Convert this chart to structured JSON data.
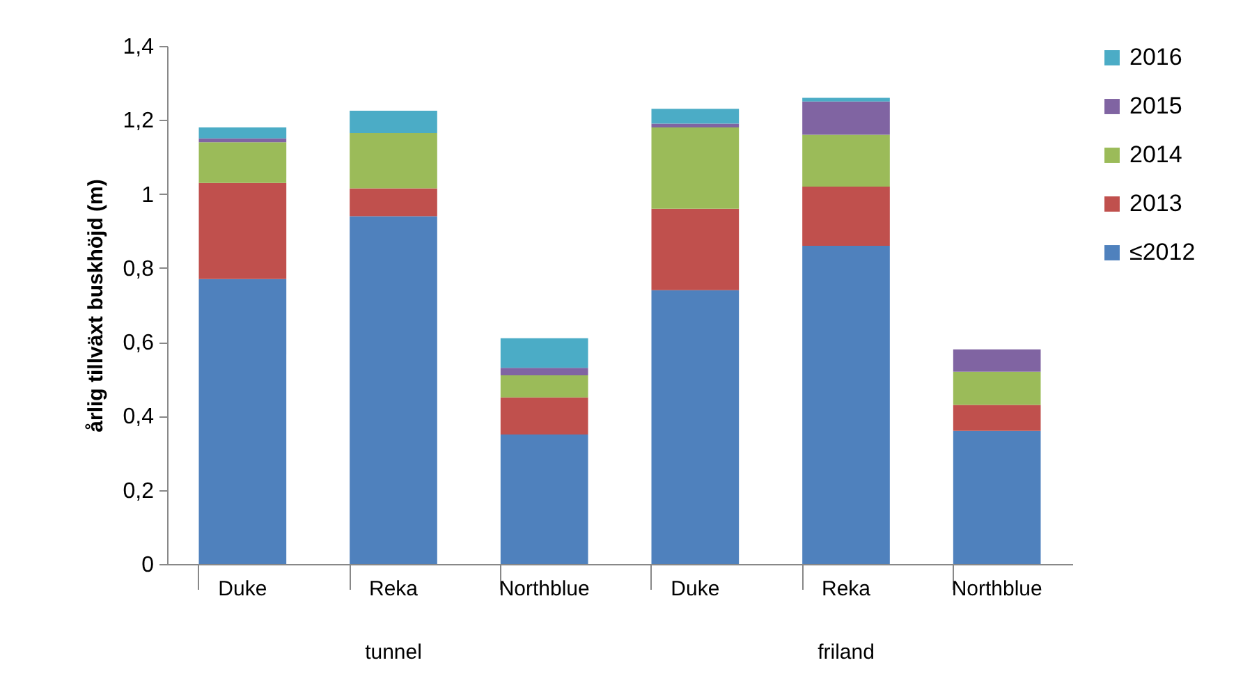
{
  "chart_data": {
    "type": "bar",
    "stacked": true,
    "ylabel": "årlig tillväxt buskhöjd (m)",
    "categories": [
      "Duke",
      "Reka",
      "Northblue",
      "Duke",
      "Reka",
      "Northblue"
    ],
    "annotations": [
      "tunnel",
      "friland"
    ],
    "series": [
      {
        "name": "≤2012",
        "color": "#4f81bd",
        "values": [
          0.77,
          0.94,
          0.35,
          0.74,
          0.86,
          0.36
        ]
      },
      {
        "name": "2013",
        "color": "#c0504d",
        "values": [
          0.26,
          0.075,
          0.1,
          0.22,
          0.16,
          0.07
        ]
      },
      {
        "name": "2014",
        "color": "#9bbb59",
        "values": [
          0.11,
          0.15,
          0.06,
          0.22,
          0.14,
          0.09
        ]
      },
      {
        "name": "2015",
        "color": "#8064a2",
        "values": [
          0.01,
          null,
          0.02,
          0.01,
          0.09,
          0.06
        ]
      },
      {
        "name": "2016",
        "color": "#4bacc6",
        "values": [
          0.03,
          0.06,
          0.08,
          0.04,
          0.01,
          null
        ]
      }
    ],
    "ylim": [
      0,
      1.4
    ],
    "yticks": [
      0,
      {
        "value": 0.2,
        "label": "0,2"
      },
      {
        "value": 0.4,
        "label": "0,4"
      },
      {
        "value": 0.6,
        "label": "0,6"
      },
      {
        "value": 0.8,
        "label": "0,8"
      },
      1,
      {
        "value": 1.2,
        "label": "1,2"
      },
      {
        "value": 1.4,
        "label": "1,4"
      }
    ],
    "legend": "right",
    "grid": false
  }
}
